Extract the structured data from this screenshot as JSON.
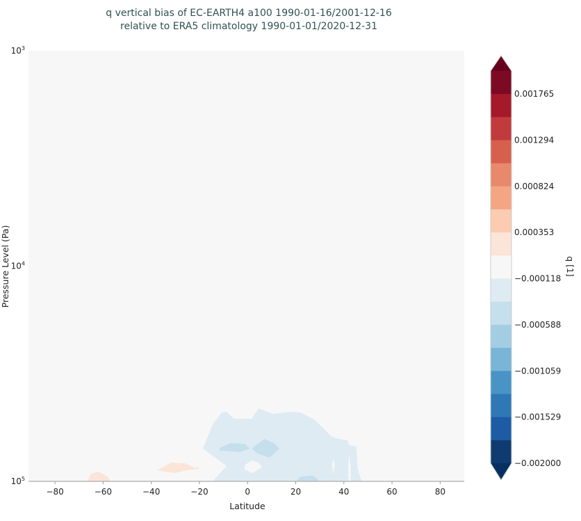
{
  "chart_data": {
    "type": "heatmap",
    "subtype": "filled-contour",
    "title": [
      "q vertical bias of EC-EARTH4 a100 1990-01-16/2001-12-16",
      "relative to ERA5 climatology 1990-01-01/2020-12-31"
    ],
    "xlabel": "Latitude",
    "ylabel": "Pressure Level (Pa)",
    "xlim": [
      -91,
      90
    ],
    "ylim": [
      100000,
      1000
    ],
    "yscale": "log",
    "y_inverted": true,
    "xticks": [
      -80,
      -60,
      -40,
      -20,
      0,
      20,
      40,
      60,
      80
    ],
    "xtick_labels": [
      "−80",
      "−60",
      "−40",
      "−20",
      "0",
      "20",
      "40",
      "60",
      "80"
    ],
    "yticks": [
      1000,
      10000,
      100000
    ],
    "ytick_labels": [
      {
        "base": "10",
        "exp": "3"
      },
      {
        "base": "10",
        "exp": "4"
      },
      {
        "base": "10",
        "exp": "5"
      }
    ],
    "background_color": "#f7f7f7",
    "colorbar": {
      "label": "q [1]",
      "range": [
        -0.002,
        0.002
      ],
      "extend": "both",
      "colormap": "RdBu_r",
      "tick_values": [
        0.001765,
        0.001294,
        0.000824,
        0.000353,
        -0.000118,
        -0.000588,
        -0.001059,
        -0.001529,
        -0.002
      ],
      "tick_labels": [
        "0.001765",
        "0.001294",
        "0.000824",
        "0.000353",
        "−0.000118",
        "−0.000588",
        "−0.001059",
        "−0.001529",
        "−0.002000"
      ],
      "colors_top_to_bottom": [
        "#7d0a25",
        "#a51a2a",
        "#c13b3d",
        "#d6604d",
        "#e8896c",
        "#f4a683",
        "#fbcbb2",
        "#fbe5d8",
        "#f7f7f7",
        "#deebf2",
        "#c5dfec",
        "#a3cde3",
        "#79b5d6",
        "#4794c5",
        "#2e78b6",
        "#1c5ca4",
        "#0e3c70"
      ],
      "extend_top_color": "#67001f",
      "extend_bottom_color": "#053061"
    },
    "regions": [
      {
        "level": "-0.000353 to -0.000118",
        "color": "#deebf2",
        "points": [
          [
            -14.5,
            100000
          ],
          [
            -8.7,
            84900
          ],
          [
            -18.5,
            70500
          ],
          [
            -14.5,
            54300
          ],
          [
            -10.7,
            47900
          ],
          [
            -8.7,
            47500
          ],
          [
            -5.8,
            51200
          ],
          [
            1.7,
            51200
          ],
          [
            4.6,
            45800
          ],
          [
            10.4,
            48600
          ],
          [
            18.2,
            47500
          ],
          [
            22,
            47900
          ],
          [
            27.8,
            51600
          ],
          [
            34.7,
            61600
          ],
          [
            36.5,
            63000
          ],
          [
            41.4,
            64500
          ],
          [
            42.2,
            67900
          ],
          [
            45.1,
            68900
          ],
          [
            45.7,
            86800
          ],
          [
            47.2,
            98500
          ],
          [
            48,
            100000
          ]
        ]
      },
      {
        "level": "-0.000118 to 0.000118",
        "color": "#f7f7f7",
        "points": [
          [
            -1.2,
            84000
          ],
          [
            1.7,
            80000
          ],
          [
            4.6,
            82000
          ],
          [
            6,
            86000
          ],
          [
            2,
            91500
          ],
          [
            -1.2,
            88000
          ]
        ]
      },
      {
        "level": "-0.000118 to 0.000118",
        "color": "#f7f7f7",
        "points": [
          [
            35.6,
            78800
          ],
          [
            36.2,
            84000
          ],
          [
            35.6,
            92000
          ],
          [
            35,
            84000
          ]
        ]
      },
      {
        "level": "-0.000118 to 0.000118",
        "color": "#f7f7f7",
        "points": [
          [
            42.2,
            74800
          ],
          [
            42.8,
            85000
          ],
          [
            42.9,
            100000
          ],
          [
            41.9,
            100000
          ],
          [
            41.8,
            85000
          ]
        ]
      },
      {
        "level": "-0.000588 to -0.000353",
        "color": "#c5dfec",
        "points": [
          [
            -11.6,
            70000
          ],
          [
            -7,
            66400
          ],
          [
            -1,
            67000
          ],
          [
            0.9,
            70500
          ],
          [
            -3,
            73000
          ],
          [
            -11.6,
            72000
          ]
        ]
      },
      {
        "level": "-0.000588 to -0.000353",
        "color": "#c5dfec",
        "points": [
          [
            1.7,
            70500
          ],
          [
            7,
            63500
          ],
          [
            11,
            66400
          ],
          [
            13.3,
            70500
          ],
          [
            9,
            77600
          ],
          [
            4,
            74000
          ]
        ]
      },
      {
        "level": "-0.000588 to -0.000353",
        "color": "#c5dfec",
        "points": [
          [
            20.3,
            100000
          ],
          [
            22,
            95000
          ],
          [
            27,
            94000
          ],
          [
            29,
            97000
          ],
          [
            29.5,
            100000
          ]
        ]
      },
      {
        "level": "0.000118 to 0.000353",
        "color": "#fbe5d8",
        "points": [
          [
            -37.6,
            89000
          ],
          [
            -31.8,
            81800
          ],
          [
            -26,
            82500
          ],
          [
            -22,
            86500
          ],
          [
            -20,
            86000
          ],
          [
            -20.5,
            87500
          ],
          [
            -26,
            89000
          ],
          [
            -30,
            91500
          ]
        ]
      },
      {
        "level": "0.000118 to 0.000353",
        "color": "#fbe5d8",
        "points": [
          [
            -66.6,
            100000
          ],
          [
            -65,
            92000
          ],
          [
            -62,
            90100
          ],
          [
            -58,
            95000
          ],
          [
            -57,
            100000
          ]
        ]
      }
    ]
  }
}
